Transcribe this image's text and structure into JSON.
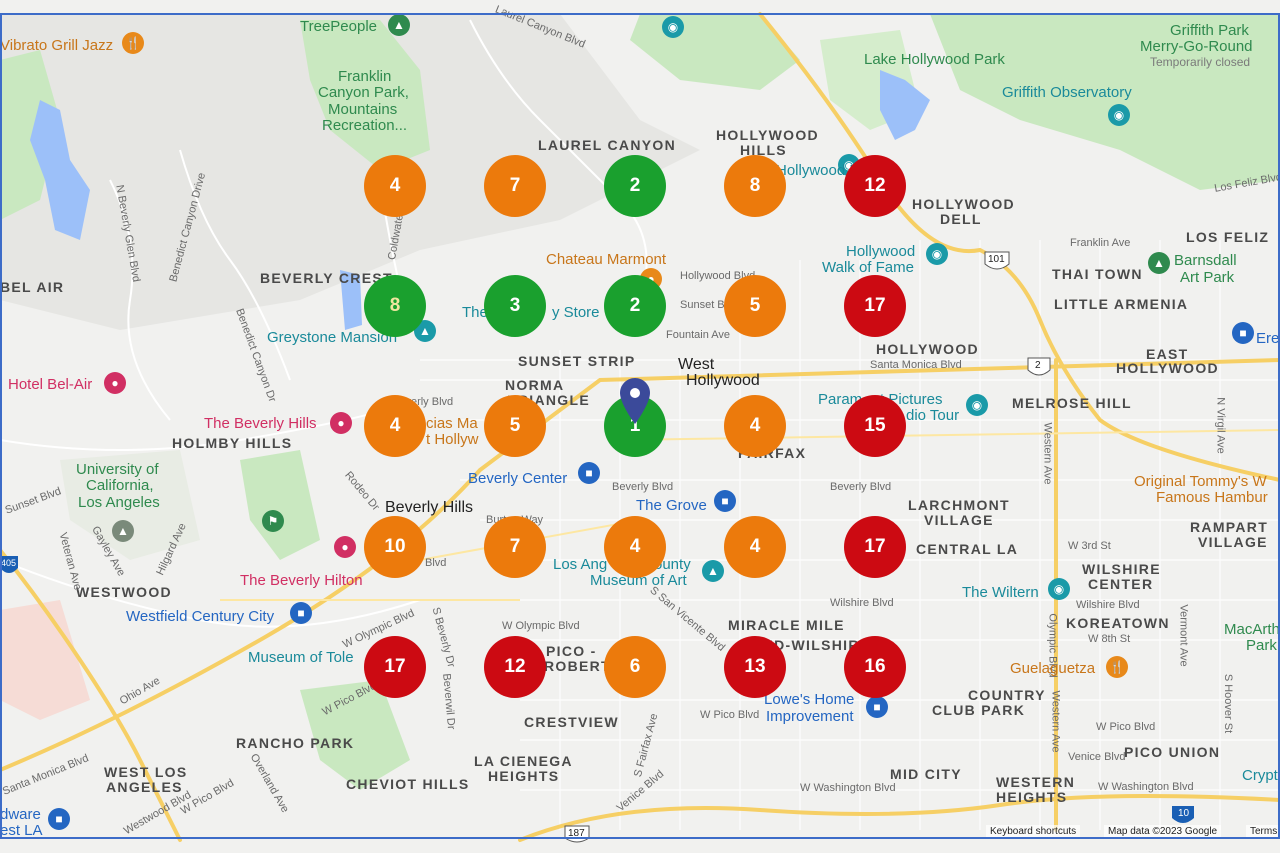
{
  "attribution": {
    "shortcuts": "Keyboard shortcuts",
    "map_data": "Map data ©2023 Google",
    "terms": "Terms"
  },
  "districts": [
    "LAUREL CANYON",
    "HOLLYWOOD",
    "HILLS",
    "HOLLYWOOD",
    "DELL",
    "LOS FELIZ",
    "THAI TOWN",
    "LITTLE ARMENIA",
    "BEVERLY CREST",
    "BEL AIR",
    "SUNSET STRIP",
    "NORMA",
    "TRIANGLE",
    "HOLLYWOOD",
    "EAST",
    "HOLLYWOOD",
    "MELROSE HILL",
    "HOLMBY HILLS",
    "FAIRFAX",
    "LARCHMONT",
    "VILLAGE",
    "CENTRAL LA",
    "RAMPART",
    "VILLAGE",
    "WILSHIRE",
    "CENTER",
    "KOREATOWN",
    "WESTWOOD",
    "MIRACLE MILE",
    "MID-WILSHIRE",
    "PICO -",
    "ROBERTSON",
    "CRESTVIEW",
    "COUNTRY",
    "CLUB PARK",
    "RANCHO PARK",
    "WEST LOS",
    "ANGELES",
    "LA CIENEGA",
    "HEIGHTS",
    "CHEVIOT HILLS",
    "MID CITY",
    "WESTERN",
    "HEIGHTS",
    "PICO UNION"
  ],
  "cities": [
    "West",
    "Hollywood",
    "Beverly Hills"
  ],
  "streets": [
    "Laurel Canyon Blvd",
    "Los Feliz Blvd",
    "Franklin Ave",
    "Hollywood Blvd",
    "Sunset Blvd",
    "Fountain Ave",
    "Santa Monica Blvd",
    "Beverly Blvd",
    "Beverly Blvd",
    "W 3rd St",
    "Wilshire Blvd",
    "Wilshire Blvd",
    "W 8th St",
    "W Olympic Blvd",
    "W Olympic Blvd",
    "S San Vicente Blvd",
    "W Pico Blvd",
    "W Pico Blvd",
    "W Pico Blvd",
    "Venice Blvd",
    "W Washington Blvd",
    "W Washington Blvd",
    "Western Ave",
    "Western Ave",
    "N Virgil Ave",
    "Vermont Ave",
    "S Hoover St",
    "N Beverly Glen Blvd",
    "Benedict Canyon Drive",
    "Benedict Canyon Dr",
    "Coldwater",
    "Sunset Blvd",
    "Rodeo Dr",
    "Veteran Ave",
    "Gayley Ave",
    "Hilgard Ave",
    "Ohio Ave",
    "W Pico Blvd",
    "S Beverly Dr",
    "Beverwil Dr",
    "Overland Ave",
    "Santa Monica Blvd",
    "S Fairfax Ave",
    "Beverly Blvd",
    "Burton Way",
    "Blvd",
    "Venice Blvd",
    "Westwood Blvd",
    "Olympic Blvd"
  ],
  "pois": [
    {
      "name": "TreePeople",
      "type": "green"
    },
    {
      "name": "Vibrato Grill Jazz",
      "type": "orange"
    },
    {
      "name": "Franklin",
      "type": "green"
    },
    {
      "name": "Canyon Park,",
      "type": "green"
    },
    {
      "name": "Mountains",
      "type": "green"
    },
    {
      "name": "Recreation...",
      "type": "green"
    },
    {
      "name": "Lake Hollywood Park",
      "type": "green"
    },
    {
      "name": "Griffith Park",
      "type": "green"
    },
    {
      "name": "Merry-Go-Round",
      "type": "green"
    },
    {
      "name": "Temporarily closed",
      "type": "gray"
    },
    {
      "name": "Griffith Observatory",
      "type": "teal"
    },
    {
      "name": "Hollywood Bowl",
      "type": "teal"
    },
    {
      "name": "Chateau Marmont",
      "type": "orange"
    },
    {
      "name": "Hollywood",
      "type": "teal"
    },
    {
      "name": "Walk of Fame",
      "type": "teal"
    },
    {
      "name": "Barnsdall",
      "type": "green"
    },
    {
      "name": "Art Park",
      "type": "green"
    },
    {
      "name": "Greystone Mansion",
      "type": "teal"
    },
    {
      "name": "The",
      "type": "teal"
    },
    {
      "name": "y Store",
      "type": "teal"
    },
    {
      "name": "Hotel Bel-Air",
      "type": "pink"
    },
    {
      "name": "The Beverly Hills",
      "type": "pink"
    },
    {
      "name": "cias Ma",
      "type": "orange"
    },
    {
      "name": "t Hollyw",
      "type": "orange"
    },
    {
      "name": "Param",
      "type": "teal"
    },
    {
      "name": "t Pictures",
      "type": "teal"
    },
    {
      "name": "dio Tour",
      "type": "teal"
    },
    {
      "name": "University of",
      "type": "green"
    },
    {
      "name": "California,",
      "type": "green"
    },
    {
      "name": "Los Angeles",
      "type": "green"
    },
    {
      "name": "Beverly Center",
      "type": "blue"
    },
    {
      "name": "The Grove",
      "type": "blue"
    },
    {
      "name": "Original Tommy's W",
      "type": "orange"
    },
    {
      "name": "Famous Hambur",
      "type": "orange"
    },
    {
      "name": "The Beverly Hilton",
      "type": "pink"
    },
    {
      "name": "Los Ang",
      "type": "teal"
    },
    {
      "name": "ounty",
      "type": "teal"
    },
    {
      "name": "Museum of Art",
      "type": "teal"
    },
    {
      "name": "The Wiltern",
      "type": "teal"
    },
    {
      "name": "Westfield Century City",
      "type": "blue"
    },
    {
      "name": "Museum of Tole",
      "type": "teal"
    },
    {
      "name": "Guelaguetza",
      "type": "orange"
    },
    {
      "name": "MacArth",
      "type": "green"
    },
    {
      "name": "Park",
      "type": "green"
    },
    {
      "name": "Lowe's Home",
      "type": "blue"
    },
    {
      "name": "Improvement",
      "type": "blue"
    },
    {
      "name": "Ere",
      "type": "blue"
    },
    {
      "name": "Crypt",
      "type": "teal"
    },
    {
      "name": "dware",
      "type": "blue"
    },
    {
      "name": "est LA",
      "type": "blue"
    }
  ],
  "route_shields": [
    "101",
    "2",
    "405",
    "10",
    "187"
  ],
  "markers": [
    {
      "count": "4",
      "status": "orange"
    },
    {
      "count": "7",
      "status": "orange"
    },
    {
      "count": "2",
      "status": "green"
    },
    {
      "count": "8",
      "status": "orange"
    },
    {
      "count": "12",
      "status": "red"
    },
    {
      "count": "8",
      "status": "green"
    },
    {
      "count": "3",
      "status": "green"
    },
    {
      "count": "2",
      "status": "green"
    },
    {
      "count": "5",
      "status": "orange"
    },
    {
      "count": "17",
      "status": "red"
    },
    {
      "count": "4",
      "status": "orange"
    },
    {
      "count": "5",
      "status": "orange"
    },
    {
      "count": "1",
      "status": "green"
    },
    {
      "count": "4",
      "status": "orange"
    },
    {
      "count": "15",
      "status": "red"
    },
    {
      "count": "10",
      "status": "orange"
    },
    {
      "count": "7",
      "status": "orange"
    },
    {
      "count": "4",
      "status": "orange"
    },
    {
      "count": "4",
      "status": "orange"
    },
    {
      "count": "17",
      "status": "red"
    },
    {
      "count": "17",
      "status": "red"
    },
    {
      "count": "12",
      "status": "red"
    },
    {
      "count": "6",
      "status": "orange"
    },
    {
      "count": "13",
      "status": "red"
    },
    {
      "count": "16",
      "status": "red"
    }
  ],
  "colors": {
    "green": "#1aa02e",
    "orange": "#ec7a0c",
    "red": "#cc0a12",
    "park": "#c9e8c0",
    "water": "#9cc0f9",
    "highway": "#f6cf65",
    "pin": "#3b4a9a"
  }
}
